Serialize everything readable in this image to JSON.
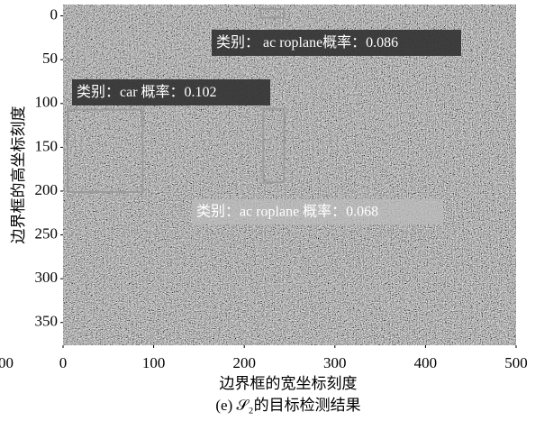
{
  "chart_data": {
    "type": "image",
    "xlabel": "边界框的宽坐标刻度",
    "ylabel": "边界框的高坐标刻度",
    "caption": "(e) 𝒮₂的目标检测结果",
    "edge_text": "00",
    "xlim": [
      0,
      500
    ],
    "ylim": [
      376,
      -13
    ],
    "xticks": [
      0,
      100,
      200,
      300,
      400,
      500
    ],
    "yticks": [
      0,
      50,
      100,
      150,
      200,
      250,
      300,
      350
    ],
    "boxes": [
      {
        "x": [
          218,
          244
        ],
        "y": [
          -8,
          2
        ]
      },
      {
        "x": [
          5,
          88
        ],
        "y": [
          107,
          201
        ]
      },
      {
        "x": [
          221,
          244
        ],
        "y": [
          106,
          190
        ]
      }
    ],
    "box_color": "#9a9a9a",
    "annotations": [
      "类别： ac roplane概率：0.086",
      "类别：car 概率：0.102",
      "类别：ac roplane 概率：0.068"
    ]
  }
}
